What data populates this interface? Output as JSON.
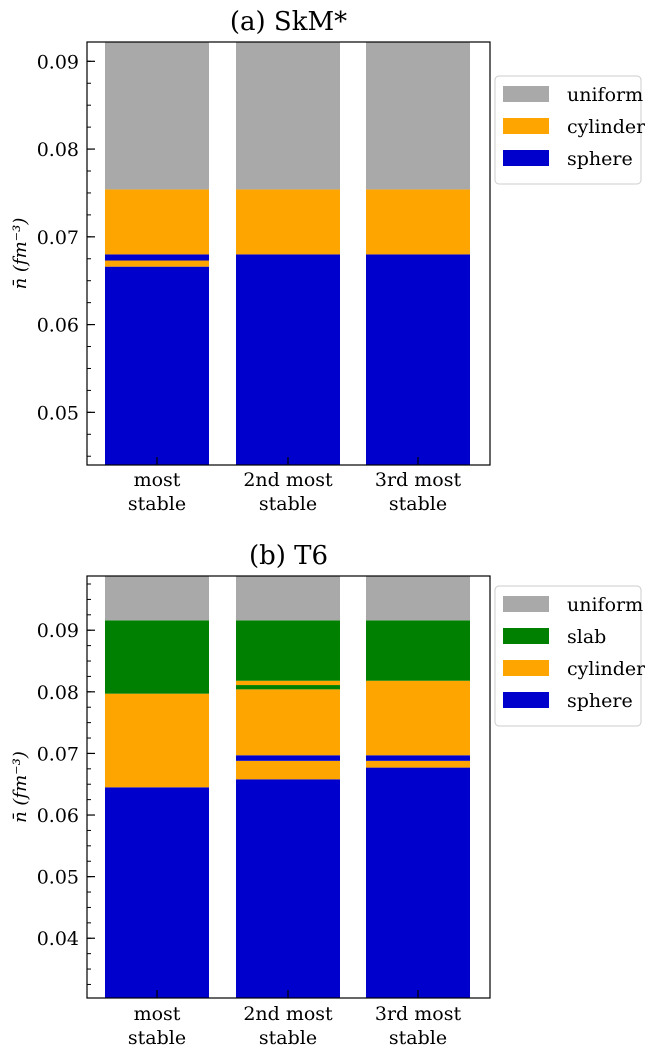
{
  "chart_data": [
    {
      "type": "bar",
      "title": "(a) SkM*",
      "ylabel": "n̄ (fm⁻³)",
      "ylim": [
        0.044,
        0.0922
      ],
      "yticks": [
        0.05,
        0.06,
        0.07,
        0.08,
        0.09
      ],
      "yticklabels": [
        "0.05",
        "0.06",
        "0.07",
        "0.08",
        "0.09"
      ],
      "yminor_step": 0.0025,
      "categories": [
        [
          "most",
          "stable"
        ],
        [
          "2nd most",
          "stable"
        ],
        [
          "3rd most",
          "stable"
        ]
      ],
      "legend": {
        "position": "outside-right",
        "entries": [
          {
            "label": "uniform",
            "color": "#a9a9a9"
          },
          {
            "label": "cylinder",
            "color": "#ffa500"
          },
          {
            "label": "sphere",
            "color": "#0000cd"
          }
        ]
      },
      "phase_colors": {
        "uniform": "#a9a9a9",
        "slab": "#008000",
        "cylinder": "#ffa500",
        "sphere": "#0000cd"
      },
      "segments": [
        [
          {
            "phase": "sphere",
            "from": 0.044,
            "to": 0.0666
          },
          {
            "phase": "cylinder",
            "from": 0.0666,
            "to": 0.0673
          },
          {
            "phase": "sphere",
            "from": 0.0673,
            "to": 0.068
          },
          {
            "phase": "cylinder",
            "from": 0.068,
            "to": 0.0754
          },
          {
            "phase": "uniform",
            "from": 0.0754,
            "to": 0.0922
          }
        ],
        [
          {
            "phase": "sphere",
            "from": 0.044,
            "to": 0.068
          },
          {
            "phase": "cylinder",
            "from": 0.068,
            "to": 0.0754
          },
          {
            "phase": "uniform",
            "from": 0.0754,
            "to": 0.0922
          }
        ],
        [
          {
            "phase": "sphere",
            "from": 0.044,
            "to": 0.068
          },
          {
            "phase": "cylinder",
            "from": 0.068,
            "to": 0.0754
          },
          {
            "phase": "uniform",
            "from": 0.0754,
            "to": 0.0922
          }
        ]
      ]
    },
    {
      "type": "bar",
      "title": "(b) T6",
      "ylabel": "n̄ (fm⁻³)",
      "ylim": [
        0.0303,
        0.0988
      ],
      "yticks": [
        0.04,
        0.05,
        0.06,
        0.07,
        0.08,
        0.09
      ],
      "yticklabels": [
        "0.04",
        "0.05",
        "0.06",
        "0.07",
        "0.08",
        "0.09"
      ],
      "yminor_step": 0.0025,
      "categories": [
        [
          "most",
          "stable"
        ],
        [
          "2nd most",
          "stable"
        ],
        [
          "3rd most",
          "stable"
        ]
      ],
      "legend": {
        "position": "outside-right",
        "entries": [
          {
            "label": "uniform",
            "color": "#a9a9a9"
          },
          {
            "label": "slab",
            "color": "#008000"
          },
          {
            "label": "cylinder",
            "color": "#ffa500"
          },
          {
            "label": "sphere",
            "color": "#0000cd"
          }
        ]
      },
      "phase_colors": {
        "uniform": "#a9a9a9",
        "slab": "#008000",
        "cylinder": "#ffa500",
        "sphere": "#0000cd"
      },
      "segments": [
        [
          {
            "phase": "sphere",
            "from": 0.0303,
            "to": 0.0645
          },
          {
            "phase": "cylinder",
            "from": 0.0645,
            "to": 0.0797
          },
          {
            "phase": "slab",
            "from": 0.0797,
            "to": 0.0916
          },
          {
            "phase": "uniform",
            "from": 0.0916,
            "to": 0.0988
          }
        ],
        [
          {
            "phase": "sphere",
            "from": 0.0303,
            "to": 0.0658
          },
          {
            "phase": "cylinder",
            "from": 0.0658,
            "to": 0.0688
          },
          {
            "phase": "sphere",
            "from": 0.0688,
            "to": 0.0697
          },
          {
            "phase": "cylinder",
            "from": 0.0697,
            "to": 0.0804
          },
          {
            "phase": "slab",
            "from": 0.0804,
            "to": 0.0811
          },
          {
            "phase": "cylinder",
            "from": 0.0811,
            "to": 0.0818
          },
          {
            "phase": "slab",
            "from": 0.0818,
            "to": 0.0916
          },
          {
            "phase": "uniform",
            "from": 0.0916,
            "to": 0.0988
          }
        ],
        [
          {
            "phase": "sphere",
            "from": 0.0303,
            "to": 0.0677
          },
          {
            "phase": "cylinder",
            "from": 0.0677,
            "to": 0.0688
          },
          {
            "phase": "sphere",
            "from": 0.0688,
            "to": 0.0697
          },
          {
            "phase": "cylinder",
            "from": 0.0697,
            "to": 0.0818
          },
          {
            "phase": "slab",
            "from": 0.0818,
            "to": 0.0916
          },
          {
            "phase": "uniform",
            "from": 0.0916,
            "to": 0.0988
          }
        ]
      ]
    }
  ]
}
